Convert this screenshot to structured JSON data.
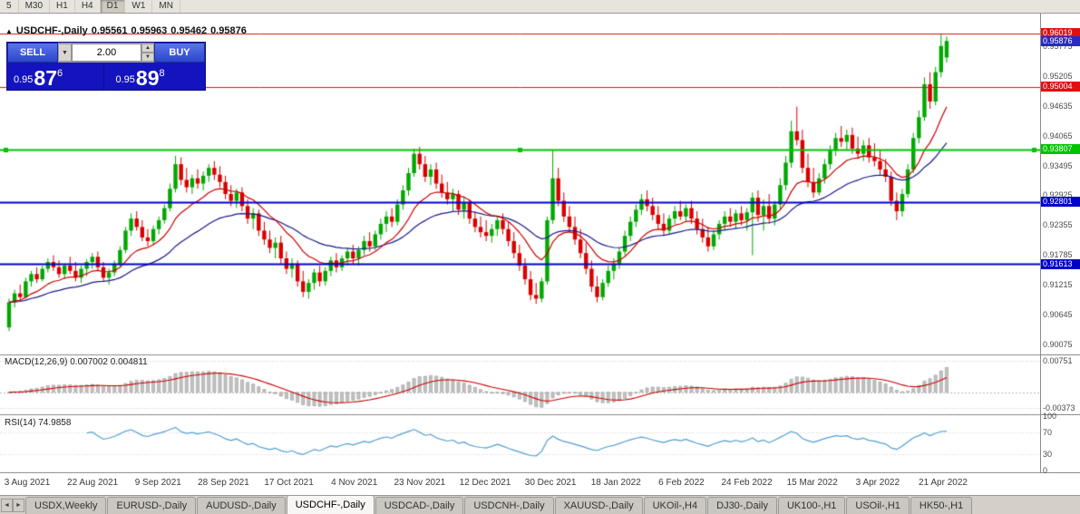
{
  "toolbar": {
    "timeframes": [
      "5",
      "M30",
      "H1",
      "H4",
      "D1",
      "W1",
      "MN"
    ],
    "active_timeframe": "D1"
  },
  "icons": {
    "panel_toggle": "▲",
    "volume_dropdown": "▼",
    "spin_up": "▲",
    "spin_down": "▼",
    "tab_scroll_left": "◄",
    "tab_scroll_right": "►"
  },
  "chart_header": {
    "symbol": "USDCHF-,Daily",
    "open": "0.95561",
    "high": "0.95963",
    "low": "0.95462",
    "close": "0.95876"
  },
  "trade_panel": {
    "sell_label": "SELL",
    "buy_label": "BUY",
    "volume": "2.00",
    "sell_price_prefix": "0.95",
    "sell_price_big": "87",
    "sell_price_sup": "6",
    "buy_price_prefix": "0.95",
    "buy_price_big": "89",
    "buy_price_sup": "8"
  },
  "price_axis": {
    "gridline_labels": [
      "0.95775",
      "0.95205",
      "0.94635",
      "0.94065",
      "0.93495",
      "0.92925",
      "0.92355",
      "0.91785",
      "0.91215",
      "0.90645",
      "0.90075"
    ],
    "current_price": {
      "value": "0.95876",
      "price": 0.95876,
      "color": "#2a2ac8"
    }
  },
  "macd_panel": {
    "label": "MACD(12,26,9) 0.007002 0.004811",
    "fast": 12,
    "slow": 26,
    "signal": 9,
    "value": "0.007002",
    "signal_value": "0.004811",
    "range": [
      -0.0048,
      0.0085
    ],
    "axis_labels": [
      {
        "value": 0.00751,
        "text": "0.00751"
      },
      {
        "value": -0.00373,
        "text": "-0.00373"
      }
    ],
    "histogram_color": "#c2c2c2",
    "histogram_border": "#8f8f8f",
    "signal_color": "#cc0000"
  },
  "rsi_panel": {
    "label": "RSI(14) 74.9858",
    "period": 14,
    "current": "74.9858",
    "range": [
      0,
      100
    ],
    "guide_levels": [
      70,
      30
    ],
    "axis_labels": [
      {
        "value": 100,
        "text": "100"
      },
      {
        "value": 70,
        "text": "70"
      },
      {
        "value": 30,
        "text": "30"
      },
      {
        "value": 0,
        "text": "0"
      }
    ],
    "line_color": "#53a0d0"
  },
  "tabs": {
    "items": [
      {
        "label": "USDX,Weekly",
        "active": false
      },
      {
        "label": "EURUSD-,Daily",
        "active": false
      },
      {
        "label": "AUDUSD-,Daily",
        "active": false
      },
      {
        "label": "USDCHF-,Daily",
        "active": true
      },
      {
        "label": "USDCAD-,Daily",
        "active": false
      },
      {
        "label": "USDCNH-,Daily",
        "active": false
      },
      {
        "label": "XAUUSD-,Daily",
        "active": false
      },
      {
        "label": "UKOil-,H4",
        "active": false
      },
      {
        "label": "DJ30-,Daily",
        "active": false
      },
      {
        "label": "UK100-,H1",
        "active": false
      },
      {
        "label": "USOil-,H1",
        "active": false
      },
      {
        "label": "HK50-,H1",
        "active": false
      }
    ]
  },
  "chart_data": {
    "type": "candlestick",
    "symbol": "USDCHF-",
    "period": "Daily",
    "y_visible_range": [
      0.899,
      0.964
    ],
    "grid_step": 0.0057,
    "up_color": "#00a800",
    "down_color": "#d80000",
    "ma_fast": {
      "period": 12,
      "color": "#cc0000"
    },
    "ma_slow": {
      "period": 30,
      "color": "#1a1a8c"
    },
    "levels": [
      {
        "price": 0.96019,
        "label": "0.96019",
        "color": "#e01010",
        "width": 1,
        "handles": false
      },
      {
        "price": 0.95004,
        "label": "0.95004",
        "color": "#e01010",
        "width": 1,
        "handles": false
      },
      {
        "price": 0.93807,
        "label": "0.93807",
        "color": "#00c400",
        "width": 2,
        "handles": true
      },
      {
        "price": 0.92801,
        "label": "0.92801",
        "color": "#0202c8",
        "width": 2,
        "handles": false
      },
      {
        "price": 0.91613,
        "label": "0.91613",
        "color": "#0202c8",
        "width": 2,
        "handles": false
      }
    ],
    "x_labels": [
      "3 Aug 2021",
      "22 Aug 2021",
      "9 Sep 2021",
      "28 Sep 2021",
      "17 Oct 2021",
      "4 Nov 2021",
      "23 Nov 2021",
      "12 Dec 2021",
      "30 Dec 2021",
      "18 Jan 2022",
      "6 Feb 2022",
      "24 Feb 2022",
      "15 Mar 2022",
      "3 Apr 2022",
      "21 Apr 2022"
    ],
    "candles": [
      [
        0.904,
        0.9095,
        0.9033,
        0.9088
      ],
      [
        0.9088,
        0.9112,
        0.9078,
        0.9105
      ],
      [
        0.9105,
        0.9122,
        0.9092,
        0.9098
      ],
      [
        0.9098,
        0.9135,
        0.9095,
        0.9128
      ],
      [
        0.9128,
        0.9148,
        0.9118,
        0.9142
      ],
      [
        0.9142,
        0.9155,
        0.9125,
        0.9132
      ],
      [
        0.9132,
        0.9158,
        0.9128,
        0.9152
      ],
      [
        0.9152,
        0.9172,
        0.9145,
        0.9165
      ],
      [
        0.9165,
        0.9178,
        0.9148,
        0.9155
      ],
      [
        0.9155,
        0.9168,
        0.9135,
        0.9142
      ],
      [
        0.9142,
        0.9162,
        0.9132,
        0.9158
      ],
      [
        0.9158,
        0.9175,
        0.9142,
        0.9148
      ],
      [
        0.9148,
        0.9165,
        0.9128,
        0.9135
      ],
      [
        0.9135,
        0.9158,
        0.9125,
        0.9152
      ],
      [
        0.9152,
        0.917,
        0.9138,
        0.9165
      ],
      [
        0.9165,
        0.9182,
        0.9152,
        0.9175
      ],
      [
        0.9175,
        0.9185,
        0.9148,
        0.9155
      ],
      [
        0.9155,
        0.9165,
        0.9128,
        0.9135
      ],
      [
        0.9135,
        0.9152,
        0.9122,
        0.9145
      ],
      [
        0.9145,
        0.9168,
        0.9138,
        0.9162
      ],
      [
        0.9162,
        0.9195,
        0.9155,
        0.9188
      ],
      [
        0.9188,
        0.9232,
        0.9182,
        0.9225
      ],
      [
        0.9225,
        0.9258,
        0.9215,
        0.9248
      ],
      [
        0.9248,
        0.9262,
        0.9225,
        0.9232
      ],
      [
        0.9232,
        0.9245,
        0.9205,
        0.9212
      ],
      [
        0.9212,
        0.9228,
        0.9195,
        0.9205
      ],
      [
        0.9205,
        0.9235,
        0.9198,
        0.9228
      ],
      [
        0.9228,
        0.9252,
        0.9218,
        0.9245
      ],
      [
        0.9245,
        0.9275,
        0.9238,
        0.9268
      ],
      [
        0.9268,
        0.9315,
        0.9262,
        0.9305
      ],
      [
        0.9305,
        0.9368,
        0.9298,
        0.9352
      ],
      [
        0.9352,
        0.9365,
        0.9312,
        0.9322
      ],
      [
        0.9322,
        0.9345,
        0.9298,
        0.9308
      ],
      [
        0.9308,
        0.9332,
        0.9295,
        0.9325
      ],
      [
        0.9325,
        0.9342,
        0.9305,
        0.9315
      ],
      [
        0.9315,
        0.9338,
        0.9302,
        0.933
      ],
      [
        0.933,
        0.9352,
        0.9318,
        0.9345
      ],
      [
        0.9345,
        0.9358,
        0.9322,
        0.9332
      ],
      [
        0.9332,
        0.9348,
        0.9308,
        0.9318
      ],
      [
        0.9318,
        0.933,
        0.9285,
        0.9295
      ],
      [
        0.9295,
        0.9312,
        0.9272,
        0.9282
      ],
      [
        0.9282,
        0.9305,
        0.9268,
        0.9298
      ],
      [
        0.9298,
        0.9308,
        0.9262,
        0.9272
      ],
      [
        0.9272,
        0.9285,
        0.9238,
        0.9248
      ],
      [
        0.9248,
        0.9268,
        0.9228,
        0.9258
      ],
      [
        0.9258,
        0.9265,
        0.9215,
        0.9225
      ],
      [
        0.9225,
        0.9242,
        0.9198,
        0.9208
      ],
      [
        0.9208,
        0.9225,
        0.9182,
        0.9192
      ],
      [
        0.9192,
        0.9212,
        0.9172,
        0.9202
      ],
      [
        0.9202,
        0.9215,
        0.9162,
        0.9172
      ],
      [
        0.9172,
        0.9185,
        0.9142,
        0.9152
      ],
      [
        0.9152,
        0.9172,
        0.9135,
        0.9162
      ],
      [
        0.9162,
        0.9168,
        0.9118,
        0.9128
      ],
      [
        0.9128,
        0.9148,
        0.9098,
        0.9108
      ],
      [
        0.9108,
        0.9132,
        0.9095,
        0.9125
      ],
      [
        0.9125,
        0.9152,
        0.9112,
        0.9145
      ],
      [
        0.9145,
        0.9158,
        0.9118,
        0.9128
      ],
      [
        0.9128,
        0.9155,
        0.912,
        0.9148
      ],
      [
        0.9148,
        0.9175,
        0.9138,
        0.9168
      ],
      [
        0.9168,
        0.9182,
        0.9145,
        0.9155
      ],
      [
        0.9155,
        0.9178,
        0.9148,
        0.9172
      ],
      [
        0.9172,
        0.9192,
        0.9158,
        0.9185
      ],
      [
        0.9185,
        0.9198,
        0.9162,
        0.9172
      ],
      [
        0.9172,
        0.9195,
        0.9158,
        0.9188
      ],
      [
        0.9188,
        0.9215,
        0.9178,
        0.9205
      ],
      [
        0.9205,
        0.9222,
        0.9185,
        0.9195
      ],
      [
        0.9195,
        0.9225,
        0.9188,
        0.9218
      ],
      [
        0.9218,
        0.9248,
        0.9208,
        0.9238
      ],
      [
        0.9238,
        0.9262,
        0.9222,
        0.9252
      ],
      [
        0.9252,
        0.9268,
        0.9232,
        0.9242
      ],
      [
        0.9242,
        0.9285,
        0.9235,
        0.9275
      ],
      [
        0.9275,
        0.9312,
        0.9265,
        0.9302
      ],
      [
        0.9302,
        0.9345,
        0.9292,
        0.9335
      ],
      [
        0.9335,
        0.9382,
        0.9328,
        0.9372
      ],
      [
        0.9372,
        0.9385,
        0.9342,
        0.9352
      ],
      [
        0.9352,
        0.9368,
        0.9318,
        0.9328
      ],
      [
        0.9328,
        0.9352,
        0.9312,
        0.9342
      ],
      [
        0.9342,
        0.9355,
        0.9305,
        0.9315
      ],
      [
        0.9315,
        0.9332,
        0.9288,
        0.9298
      ],
      [
        0.9298,
        0.9318,
        0.9275,
        0.9285
      ],
      [
        0.9285,
        0.9305,
        0.9262,
        0.9295
      ],
      [
        0.9295,
        0.9302,
        0.9255,
        0.9265
      ],
      [
        0.9265,
        0.9288,
        0.9248,
        0.9278
      ],
      [
        0.9278,
        0.9285,
        0.9238,
        0.9248
      ],
      [
        0.9248,
        0.9262,
        0.9222,
        0.9232
      ],
      [
        0.9232,
        0.9252,
        0.9212,
        0.9222
      ],
      [
        0.9222,
        0.9245,
        0.9205,
        0.9215
      ],
      [
        0.9215,
        0.9238,
        0.9202,
        0.9228
      ],
      [
        0.9228,
        0.9252,
        0.9215,
        0.9245
      ],
      [
        0.9245,
        0.9258,
        0.9218,
        0.9228
      ],
      [
        0.9228,
        0.9242,
        0.9195,
        0.9205
      ],
      [
        0.9205,
        0.9222,
        0.9172,
        0.9182
      ],
      [
        0.9182,
        0.9198,
        0.9148,
        0.9158
      ],
      [
        0.9158,
        0.9172,
        0.9122,
        0.9132
      ],
      [
        0.9132,
        0.9148,
        0.9092,
        0.9102
      ],
      [
        0.9102,
        0.9125,
        0.9085,
        0.9095
      ],
      [
        0.9095,
        0.9135,
        0.9088,
        0.9128
      ],
      [
        0.9128,
        0.9252,
        0.9122,
        0.9245
      ],
      [
        0.9245,
        0.9378,
        0.9238,
        0.9325
      ],
      [
        0.9325,
        0.9345,
        0.9272,
        0.9282
      ],
      [
        0.9282,
        0.9298,
        0.9242,
        0.9252
      ],
      [
        0.9252,
        0.9272,
        0.9222,
        0.9232
      ],
      [
        0.9232,
        0.9252,
        0.9198,
        0.9208
      ],
      [
        0.9208,
        0.9228,
        0.9172,
        0.9182
      ],
      [
        0.9182,
        0.9202,
        0.9142,
        0.9152
      ],
      [
        0.9152,
        0.9168,
        0.9108,
        0.9118
      ],
      [
        0.9118,
        0.9138,
        0.9088,
        0.9098
      ],
      [
        0.9098,
        0.9132,
        0.9092,
        0.9125
      ],
      [
        0.9125,
        0.9158,
        0.9118,
        0.9148
      ],
      [
        0.9148,
        0.9172,
        0.9132,
        0.9162
      ],
      [
        0.9162,
        0.9192,
        0.9152,
        0.9185
      ],
      [
        0.9185,
        0.9225,
        0.9178,
        0.9215
      ],
      [
        0.9215,
        0.9252,
        0.9205,
        0.9242
      ],
      [
        0.9242,
        0.9275,
        0.9232,
        0.9265
      ],
      [
        0.9265,
        0.9295,
        0.9255,
        0.9285
      ],
      [
        0.9285,
        0.9302,
        0.9262,
        0.9272
      ],
      [
        0.9272,
        0.9288,
        0.9245,
        0.9255
      ],
      [
        0.9255,
        0.9272,
        0.9228,
        0.9238
      ],
      [
        0.9238,
        0.9258,
        0.9215,
        0.9225
      ],
      [
        0.9225,
        0.9255,
        0.9218,
        0.9248
      ],
      [
        0.9248,
        0.9272,
        0.9238,
        0.9262
      ],
      [
        0.9262,
        0.9282,
        0.9245,
        0.9252
      ],
      [
        0.9252,
        0.9275,
        0.9242,
        0.9268
      ],
      [
        0.9268,
        0.9282,
        0.9238,
        0.9248
      ],
      [
        0.9248,
        0.9262,
        0.9218,
        0.9228
      ],
      [
        0.9228,
        0.9248,
        0.9202,
        0.9212
      ],
      [
        0.9212,
        0.9232,
        0.9185,
        0.9195
      ],
      [
        0.9195,
        0.9225,
        0.9188,
        0.9218
      ],
      [
        0.9218,
        0.9245,
        0.9208,
        0.9238
      ],
      [
        0.9238,
        0.9262,
        0.9225,
        0.9252
      ],
      [
        0.9252,
        0.9268,
        0.9232,
        0.9242
      ],
      [
        0.9242,
        0.9265,
        0.9228,
        0.9258
      ],
      [
        0.9258,
        0.9272,
        0.9235,
        0.9245
      ],
      [
        0.9245,
        0.9268,
        0.9225,
        0.926
      ],
      [
        0.926,
        0.9298,
        0.9178,
        0.9288
      ],
      [
        0.9288,
        0.9302,
        0.9242,
        0.9255
      ],
      [
        0.9255,
        0.9285,
        0.9225,
        0.9272
      ],
      [
        0.9272,
        0.9295,
        0.9238,
        0.9248
      ],
      [
        0.9248,
        0.9282,
        0.9235,
        0.9275
      ],
      [
        0.9275,
        0.9325,
        0.9265,
        0.9312
      ],
      [
        0.9312,
        0.9368,
        0.9302,
        0.9355
      ],
      [
        0.9355,
        0.9435,
        0.9345,
        0.9415
      ],
      [
        0.9415,
        0.9462,
        0.9388,
        0.9398
      ],
      [
        0.9398,
        0.9418,
        0.9335,
        0.9345
      ],
      [
        0.9345,
        0.9372,
        0.9308,
        0.9318
      ],
      [
        0.9318,
        0.9345,
        0.9288,
        0.9298
      ],
      [
        0.9298,
        0.9335,
        0.9292,
        0.9325
      ],
      [
        0.9325,
        0.9362,
        0.9315,
        0.9352
      ],
      [
        0.9352,
        0.9388,
        0.9342,
        0.9378
      ],
      [
        0.9378,
        0.9412,
        0.9368,
        0.9402
      ],
      [
        0.9402,
        0.9425,
        0.9385,
        0.9395
      ],
      [
        0.9395,
        0.9418,
        0.9378,
        0.9408
      ],
      [
        0.9408,
        0.9422,
        0.9372,
        0.9382
      ],
      [
        0.9382,
        0.9405,
        0.9362,
        0.9372
      ],
      [
        0.9372,
        0.9398,
        0.9358,
        0.9388
      ],
      [
        0.9388,
        0.9402,
        0.9355,
        0.9365
      ],
      [
        0.9365,
        0.9392,
        0.9348,
        0.9358
      ],
      [
        0.9358,
        0.9378,
        0.9332,
        0.9342
      ],
      [
        0.9342,
        0.9362,
        0.9318,
        0.9328
      ],
      [
        0.9328,
        0.9338,
        0.9272,
        0.9282
      ],
      [
        0.9282,
        0.9298,
        0.9245,
        0.9262
      ],
      [
        0.9262,
        0.9305,
        0.9252,
        0.9295
      ],
      [
        0.9295,
        0.9352,
        0.9288,
        0.9342
      ],
      [
        0.9342,
        0.9412,
        0.9335,
        0.9402
      ],
      [
        0.9402,
        0.9455,
        0.9392,
        0.9442
      ],
      [
        0.9442,
        0.9518,
        0.9435,
        0.9505
      ],
      [
        0.9505,
        0.9528,
        0.9458,
        0.9472
      ],
      [
        0.9472,
        0.9538,
        0.9465,
        0.9528
      ],
      [
        0.9528,
        0.96019,
        0.9518,
        0.9578
      ],
      [
        0.95561,
        0.95963,
        0.95462,
        0.95876
      ]
    ]
  }
}
